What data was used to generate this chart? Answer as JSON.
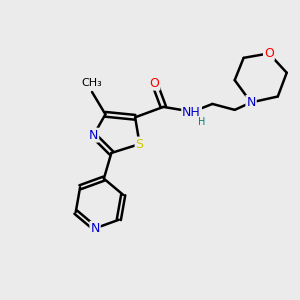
{
  "bg_color": "#ebebeb",
  "bond_color": "#000000",
  "atom_colors": {
    "N": "#0000cc",
    "O": "#ff0000",
    "S": "#cccc00",
    "C": "#000000",
    "H": "#008080"
  },
  "figsize": [
    3.0,
    3.0
  ],
  "dpi": 100
}
